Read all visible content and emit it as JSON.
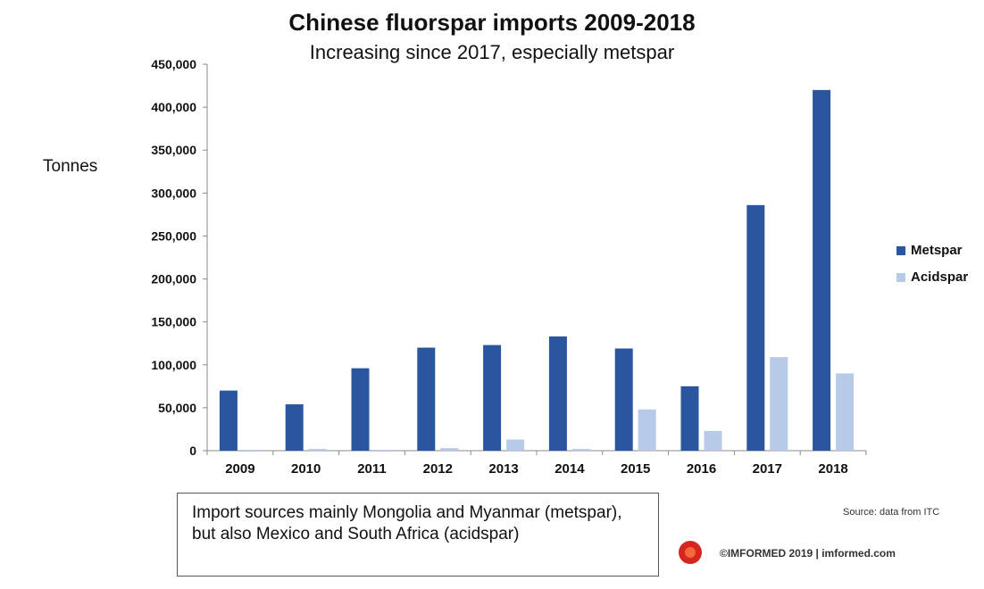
{
  "chart_data": {
    "type": "bar",
    "title": "Chinese fluorspar imports 2009-2018",
    "subtitle": "Increasing since 2017, especially metspar",
    "ylabel": "Tonnes",
    "xlabel": "",
    "ylim": [
      0,
      450000
    ],
    "yticks": [
      0,
      50000,
      100000,
      150000,
      200000,
      250000,
      300000,
      350000,
      400000,
      450000
    ],
    "ytick_labels": [
      "0",
      "50,000",
      "100,000",
      "150,000",
      "200,000",
      "250,000",
      "300,000",
      "350,000",
      "400,000",
      "450,000"
    ],
    "categories": [
      "2009",
      "2010",
      "2011",
      "2012",
      "2013",
      "2014",
      "2015",
      "2016",
      "2017",
      "2018"
    ],
    "series": [
      {
        "name": "Metspar",
        "color": "#2a56a0",
        "values": [
          70000,
          54000,
          96000,
          120000,
          123000,
          133000,
          119000,
          75000,
          286000,
          420000
        ]
      },
      {
        "name": "Acidspar",
        "color": "#b7cbe8",
        "values": [
          1000,
          2000,
          1000,
          3000,
          13000,
          2000,
          48000,
          23000,
          109000,
          90000
        ]
      }
    ],
    "legend_position": "right",
    "grid": false
  },
  "note": "Import sources mainly Mongolia and Myanmar (metspar), but also Mexico and South Africa (acidspar)",
  "source": "Source: data from ITC",
  "copyright": "©IMFORMED 2019  |  imformed.com",
  "logo_icon": "imformed-logo-icon"
}
